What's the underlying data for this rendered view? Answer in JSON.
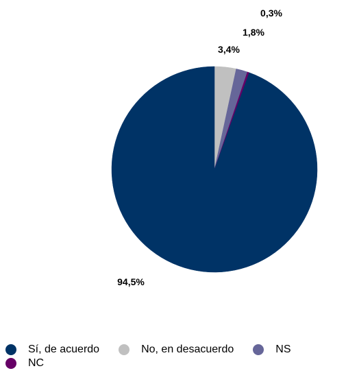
{
  "chart_data": {
    "type": "pie",
    "title": "",
    "categories": [
      "Sí, de acuerdo",
      "No, en desacuerdo",
      "NS",
      "NC"
    ],
    "values": [
      94.5,
      3.4,
      1.8,
      0.3
    ],
    "data_labels": [
      "94,5%",
      "3,4%",
      "1,8%",
      "0,3%"
    ],
    "colors": [
      "#003366",
      "#c0c0c0",
      "#666699",
      "#660066"
    ],
    "start_angle_deg": 0,
    "direction": "clockwise",
    "legend_position": "bottom",
    "legend": [
      {
        "label": "Sí, de acuerdo",
        "color": "#003366"
      },
      {
        "label": "No, en desacuerdo",
        "color": "#c0c0c0"
      },
      {
        "label": "NS",
        "color": "#666699"
      },
      {
        "label": "NC",
        "color": "#660066"
      }
    ]
  }
}
